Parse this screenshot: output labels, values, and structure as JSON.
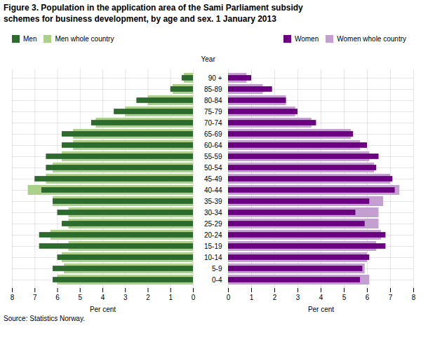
{
  "chart_data": [
    {
      "type": "bar",
      "orientation": "horizontal",
      "title": "Figure 3. Population in the application area of the Sami Parliament subsidy\nschemes for business development, by age and sex. 1 January 2013",
      "categories": [
        "0-4",
        "5-9",
        "10-14",
        "15-19",
        "20-24",
        "25-29",
        "30-34",
        "35-39",
        "40-44",
        "45-49",
        "50-54",
        "55-59",
        "60-64",
        "65-69",
        "70-74",
        "75-79",
        "80-84",
        "85-89",
        "90 +"
      ],
      "series": [
        {
          "name": "Men",
          "color": "#2d6a2d",
          "values": [
            6.2,
            6.2,
            6.0,
            6.8,
            6.8,
            5.8,
            6.0,
            6.2,
            6.7,
            7.0,
            6.5,
            6.5,
            5.8,
            5.8,
            4.5,
            3.5,
            2.5,
            1.0,
            0.5
          ]
        },
        {
          "name": "Men whole country",
          "color": "#aad08a",
          "values": [
            6.0,
            5.7,
            5.8,
            5.5,
            6.3,
            5.5,
            5.5,
            6.2,
            7.3,
            6.5,
            6.2,
            5.8,
            5.3,
            5.3,
            4.3,
            3.0,
            2.0,
            0.9,
            0.4
          ]
        }
      ],
      "xlabel": "Per cent",
      "xlim": [
        8,
        0
      ],
      "xticks": [
        0,
        1,
        2,
        3,
        4,
        5,
        6,
        7,
        8
      ],
      "grid": true,
      "legend": "upper left",
      "tick_labels": "x",
      "annotations": [
        "Source: Statistics Norway."
      ]
    },
    {
      "type": "bar",
      "orientation": "horizontal",
      "categories": [
        "0-4",
        "5-9",
        "10-14",
        "15-19",
        "20-24",
        "25-29",
        "30-34",
        "35-39",
        "40-44",
        "45-49",
        "50-54",
        "55-59",
        "60-64",
        "65-69",
        "70-74",
        "75-79",
        "80-84",
        "85-89",
        "90 +"
      ],
      "series": [
        {
          "name": "Women",
          "color": "#6a0080",
          "values": [
            5.7,
            5.8,
            6.1,
            6.8,
            6.8,
            5.9,
            5.5,
            6.1,
            7.2,
            7.1,
            6.4,
            6.5,
            6.0,
            5.4,
            3.8,
            3.0,
            2.5,
            1.9,
            1.0
          ]
        },
        {
          "name": "Women whole country",
          "color": "#c4a0d0",
          "values": [
            6.1,
            5.9,
            6.0,
            6.4,
            6.6,
            6.5,
            6.5,
            6.7,
            7.4,
            7.0,
            6.3,
            6.1,
            5.7,
            5.3,
            3.6,
            2.9,
            2.5,
            1.5,
            0.8
          ]
        }
      ],
      "xlabel": "Per cent",
      "ylabel": "Year",
      "xlim": [
        0,
        8
      ],
      "xticks": [
        0,
        1,
        2,
        3,
        4,
        5,
        6,
        7,
        8
      ],
      "grid": true,
      "legend": "upper right"
    }
  ]
}
